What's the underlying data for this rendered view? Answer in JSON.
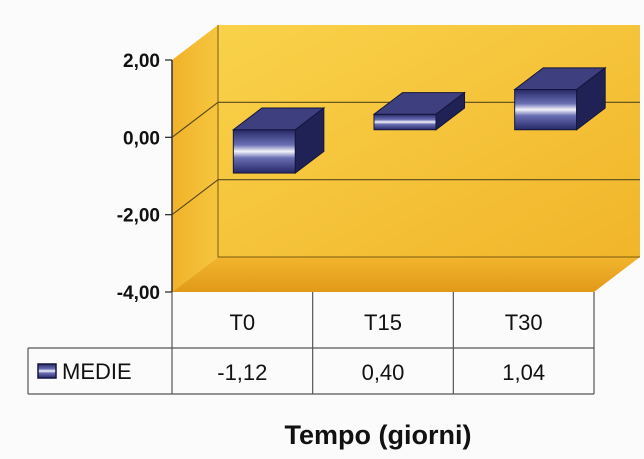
{
  "chart_data": {
    "type": "bar",
    "style": "3d",
    "categories": [
      "T0",
      "T15",
      "T30"
    ],
    "series": [
      {
        "name": "MEDIE",
        "values": [
          -1.12,
          0.4,
          1.04
        ],
        "value_labels": [
          "-1,12",
          "0,40",
          "1,04"
        ]
      }
    ],
    "ylim": [
      -4,
      2
    ],
    "y_ticks": [
      2,
      0,
      -2,
      -4
    ],
    "y_tick_labels": [
      "2,00",
      "0,00",
      "-2,00",
      "-4,00"
    ],
    "xlabel": "Tempo (giorni)",
    "ylabel": "",
    "title": "",
    "grid": true,
    "data_table": true,
    "legend_placement": "data table",
    "colors": {
      "wall": "#f6c63e",
      "floor": "#e7a21a",
      "bar_dark": "#262866",
      "bar_mid": "#5a5fa8",
      "bar_light": "#f2f2f8",
      "bar_side": "#202255",
      "bar_top": "#3d3f7e",
      "grid": "#5a4a1e",
      "text": "#111111"
    }
  }
}
